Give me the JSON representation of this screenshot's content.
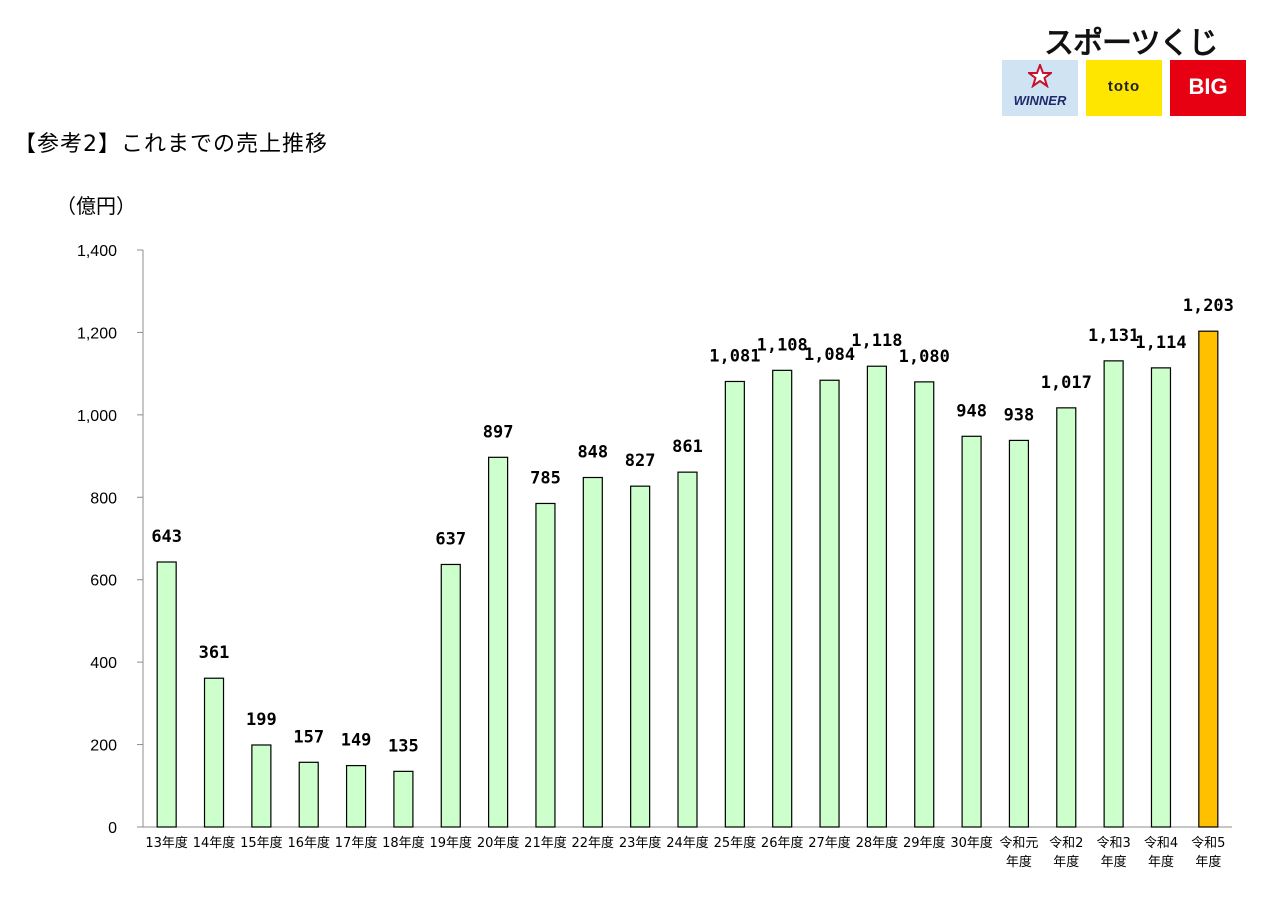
{
  "heading": "【参考2】これまでの売上推移",
  "unit_label": "（億円）",
  "brand": {
    "title": "スポーツくじ",
    "logos": [
      {
        "name": "WINNER",
        "color": "#cfe3f3"
      },
      {
        "name": "toto",
        "color": "#ffe600"
      },
      {
        "name": "BIG",
        "color": "#e60012"
      }
    ]
  },
  "chart_data": {
    "type": "bar",
    "title": "",
    "xlabel": "",
    "ylabel": "（億円）",
    "ylim": [
      0,
      1400
    ],
    "yticks": [
      0,
      200,
      400,
      600,
      800,
      1000,
      1200,
      1400
    ],
    "ytick_labels": [
      "0",
      "200",
      "400",
      "600",
      "800",
      "1,000",
      "1,200",
      "1,400"
    ],
    "categories": [
      [
        "13年度"
      ],
      [
        "14年度"
      ],
      [
        "15年度"
      ],
      [
        "16年度"
      ],
      [
        "17年度"
      ],
      [
        "18年度"
      ],
      [
        "19年度"
      ],
      [
        "20年度"
      ],
      [
        "21年度"
      ],
      [
        "22年度"
      ],
      [
        "23年度"
      ],
      [
        "24年度"
      ],
      [
        "25年度"
      ],
      [
        "26年度"
      ],
      [
        "27年度"
      ],
      [
        "28年度"
      ],
      [
        "29年度"
      ],
      [
        "30年度"
      ],
      [
        "令和元",
        "年度"
      ],
      [
        "令和2",
        "年度"
      ],
      [
        "令和3",
        "年度"
      ],
      [
        "令和4",
        "年度"
      ],
      [
        "令和5",
        "年度"
      ]
    ],
    "values": [
      643,
      361,
      199,
      157,
      149,
      135,
      637,
      897,
      785,
      848,
      827,
      861,
      1081,
      1108,
      1084,
      1118,
      1080,
      948,
      938,
      1017,
      1131,
      1114,
      1203
    ],
    "value_labels": [
      "643",
      "361",
      "199",
      "157",
      "149",
      "135",
      "637",
      "897",
      "785",
      "848",
      "827",
      "861",
      "1,081",
      "1,108",
      "1,084",
      "1,118",
      "1,080",
      "948",
      "938",
      "1,017",
      "1,131",
      "1,114",
      "1,203"
    ],
    "bar_color": "#ccffcc",
    "highlight_index": 22,
    "highlight_color": "#ffc000",
    "highlight_label_color": "#c00000",
    "grid": false,
    "legend": "none"
  }
}
